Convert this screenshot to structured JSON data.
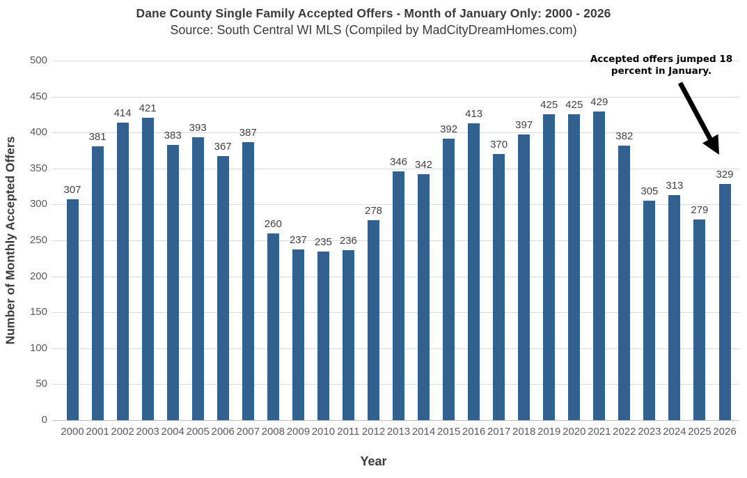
{
  "chart_data": {
    "type": "bar",
    "title": "Dane County Single Family Accepted Offers - Month of January Only: 2000 - 2026",
    "subtitle": "Source: South Central WI MLS (Compiled by MadCityDreamHomes.com)",
    "xlabel": "Year",
    "ylabel": "Number of Monthly Accepted Offers",
    "categories": [
      "2000",
      "2001",
      "2002",
      "2003",
      "2004",
      "2005",
      "2006",
      "2007",
      "2008",
      "2009",
      "2010",
      "2011",
      "2012",
      "2013",
      "2014",
      "2015",
      "2016",
      "2017",
      "2018",
      "2019",
      "2020",
      "2021",
      "2022",
      "2023",
      "2024",
      "2025",
      "2026"
    ],
    "values": [
      307,
      381,
      414,
      421,
      383,
      393,
      367,
      387,
      260,
      237,
      235,
      236,
      278,
      346,
      342,
      392,
      413,
      370,
      397,
      425,
      425,
      429,
      382,
      305,
      313,
      279,
      329
    ],
    "ylim": [
      0,
      500
    ],
    "ytick_step": 50,
    "grid": true,
    "legend_position": "none",
    "bar_color": "#33618F",
    "annotation": {
      "line1": "Accepted offers jumped 18",
      "line2": "percent in January.",
      "arrow_target_year": "2026"
    }
  },
  "colors": {
    "bar": "#33618F",
    "gridline": "#d9d9d9",
    "axis_line": "#bfbfbf",
    "tick_text": "#595959",
    "value_label_text": "#404040",
    "title_text": "#3b3b3b",
    "annotation_text": "#000000"
  }
}
